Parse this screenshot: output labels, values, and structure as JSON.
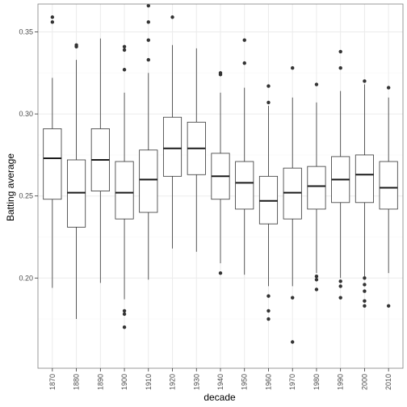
{
  "chart_data": {
    "type": "boxplot",
    "title": "",
    "xlabel": "decade",
    "ylabel": "Batting average",
    "ylim": [
      0.145,
      0.367
    ],
    "yticks": [
      0.2,
      0.25,
      0.3,
      0.35
    ],
    "ytick_labels": [
      "0.20",
      "0.25",
      "0.30",
      "0.35"
    ],
    "grid": true,
    "colors": {
      "box_fill": "#ffffff",
      "box_stroke": "#333333",
      "median": "#1a1a1a",
      "outlier": "#333333",
      "grid_major": "#ebebeb",
      "grid_minor": "#f7f7f7",
      "panel_border": "#7f7f7f"
    },
    "categories": [
      "1870",
      "1880",
      "1890",
      "1900",
      "1910",
      "1920",
      "1930",
      "1940",
      "1950",
      "1960",
      "1970",
      "1980",
      "1990",
      "2000",
      "2010"
    ],
    "boxes": [
      {
        "decade": "1870",
        "lower_whisker": 0.194,
        "q1": 0.248,
        "median": 0.273,
        "q3": 0.291,
        "upper_whisker": 0.322,
        "outliers": [
          0.356,
          0.359
        ]
      },
      {
        "decade": "1880",
        "lower_whisker": 0.175,
        "q1": 0.231,
        "median": 0.252,
        "q3": 0.272,
        "upper_whisker": 0.333,
        "outliers": [
          0.341,
          0.342
        ]
      },
      {
        "decade": "1890",
        "lower_whisker": 0.197,
        "q1": 0.253,
        "median": 0.272,
        "q3": 0.291,
        "upper_whisker": 0.346,
        "outliers": []
      },
      {
        "decade": "1900",
        "lower_whisker": 0.187,
        "q1": 0.236,
        "median": 0.252,
        "q3": 0.271,
        "upper_whisker": 0.313,
        "outliers": [
          0.17,
          0.178,
          0.18,
          0.327,
          0.339,
          0.341
        ]
      },
      {
        "decade": "1910",
        "lower_whisker": 0.199,
        "q1": 0.24,
        "median": 0.26,
        "q3": 0.278,
        "upper_whisker": 0.325,
        "outliers": [
          0.333,
          0.345,
          0.356,
          0.366
        ]
      },
      {
        "decade": "1920",
        "lower_whisker": 0.218,
        "q1": 0.262,
        "median": 0.279,
        "q3": 0.298,
        "upper_whisker": 0.342,
        "outliers": [
          0.359
        ]
      },
      {
        "decade": "1930",
        "lower_whisker": 0.216,
        "q1": 0.263,
        "median": 0.279,
        "q3": 0.295,
        "upper_whisker": 0.34,
        "outliers": []
      },
      {
        "decade": "1940",
        "lower_whisker": 0.209,
        "q1": 0.248,
        "median": 0.262,
        "q3": 0.276,
        "upper_whisker": 0.313,
        "outliers": [
          0.203,
          0.324,
          0.325
        ]
      },
      {
        "decade": "1950",
        "lower_whisker": 0.202,
        "q1": 0.242,
        "median": 0.258,
        "q3": 0.271,
        "upper_whisker": 0.316,
        "outliers": [
          0.331,
          0.345
        ]
      },
      {
        "decade": "1960",
        "lower_whisker": 0.195,
        "q1": 0.233,
        "median": 0.247,
        "q3": 0.262,
        "upper_whisker": 0.305,
        "outliers": [
          0.175,
          0.18,
          0.189,
          0.307,
          0.317
        ]
      },
      {
        "decade": "1970",
        "lower_whisker": 0.195,
        "q1": 0.236,
        "median": 0.252,
        "q3": 0.267,
        "upper_whisker": 0.31,
        "outliers": [
          0.161,
          0.188,
          0.328
        ]
      },
      {
        "decade": "1980",
        "lower_whisker": 0.203,
        "q1": 0.242,
        "median": 0.256,
        "q3": 0.268,
        "upper_whisker": 0.307,
        "outliers": [
          0.193,
          0.199,
          0.201,
          0.318
        ]
      },
      {
        "decade": "1990",
        "lower_whisker": 0.2,
        "q1": 0.246,
        "median": 0.26,
        "q3": 0.274,
        "upper_whisker": 0.314,
        "outliers": [
          0.188,
          0.195,
          0.198,
          0.328,
          0.338
        ]
      },
      {
        "decade": "2000",
        "lower_whisker": 0.201,
        "q1": 0.246,
        "median": 0.263,
        "q3": 0.275,
        "upper_whisker": 0.318,
        "outliers": [
          0.183,
          0.186,
          0.192,
          0.196,
          0.2,
          0.32
        ]
      },
      {
        "decade": "2010",
        "lower_whisker": 0.203,
        "q1": 0.242,
        "median": 0.255,
        "q3": 0.271,
        "upper_whisker": 0.31,
        "outliers": [
          0.183,
          0.316
        ]
      }
    ]
  }
}
